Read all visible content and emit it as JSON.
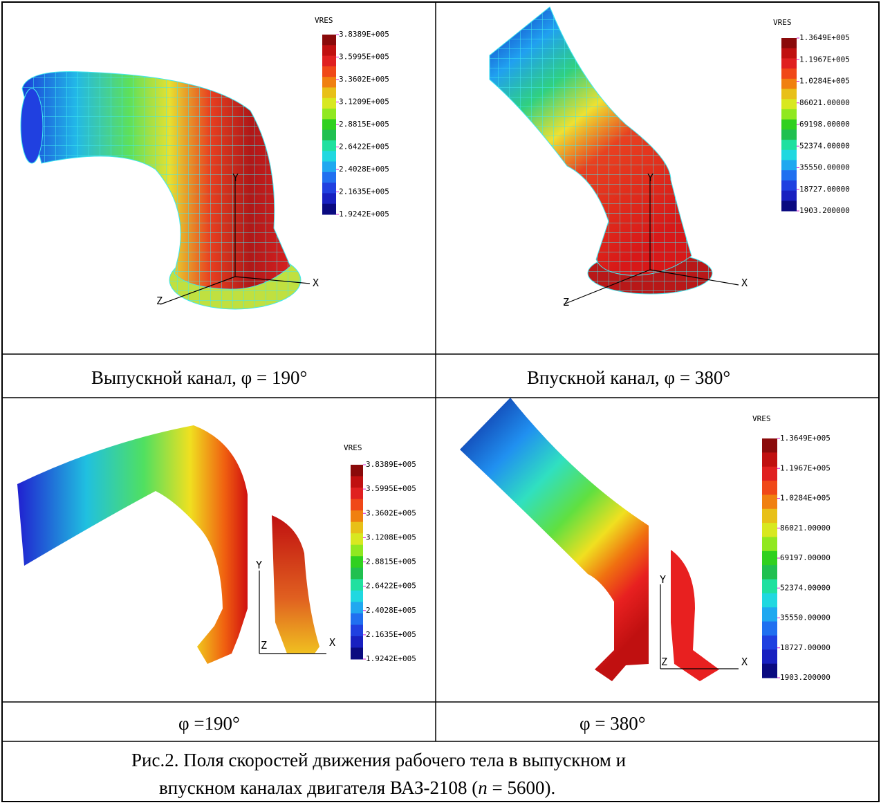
{
  "panels": [
    {
      "legend_title": "VRES",
      "legend_labels": [
        "3.8389E+005",
        "3.5995E+005",
        "3.3602E+005",
        "3.1209E+005",
        "2.8815E+005",
        "2.6422E+005",
        "2.4028E+005",
        "2.1635E+005",
        "1.9242E+005"
      ],
      "axes": [
        "X",
        "Y",
        "Z"
      ],
      "caption": "Выпускной канал, φ = 190°"
    },
    {
      "legend_title": "VRES",
      "legend_labels": [
        "1.3649E+005",
        "1.1967E+005",
        "1.0284E+005",
        "86021.00000",
        "69198.00000",
        "52374.00000",
        "35550.00000",
        "18727.00000",
        "1903.200000"
      ],
      "axes": [
        "X",
        "Y",
        "Z"
      ],
      "caption": "Впускной канал, φ = 380°"
    },
    {
      "legend_title": "VRES",
      "legend_labels": [
        "3.8389E+005",
        "3.5995E+005",
        "3.3602E+005",
        "3.1208E+005",
        "2.8815E+005",
        "2.6422E+005",
        "2.4028E+005",
        "2.1635E+005",
        "1.9242E+005"
      ],
      "axes": [
        "X",
        "Y",
        "Z"
      ],
      "caption": "φ =190°"
    },
    {
      "legend_title": "VRES",
      "legend_labels": [
        "1.3649E+005",
        "1.1967E+005",
        "1.0284E+005",
        "86021.00000",
        "69197.00000",
        "52374.00000",
        "35550.00000",
        "18727.00000",
        "1903.200000"
      ],
      "axes": [
        "X",
        "Y",
        "Z"
      ],
      "caption": "φ = 380°"
    }
  ],
  "figure_caption": {
    "line1": "Рис.2. Поля скоростей движения рабочего тела в выпускном и",
    "line2": [
      "впускном каналах двигателя ВАЗ-2108 (",
      "n",
      " = 5600)."
    ]
  }
}
